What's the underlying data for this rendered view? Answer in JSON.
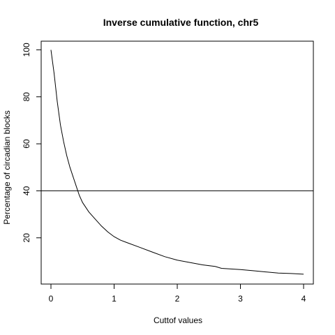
{
  "chart_data": {
    "type": "line",
    "title": "Inverse cumulative function, chr5",
    "xlabel": "Cuttof values",
    "ylabel": "Percentage of circadian blocks",
    "xlim": [
      0,
      4
    ],
    "ylim": [
      3,
      101
    ],
    "x_ticks": [
      0,
      1,
      2,
      3,
      4
    ],
    "y_ticks": [
      20,
      40,
      60,
      80,
      100
    ],
    "grid": false,
    "legend": "none",
    "reference_line": {
      "orientation": "horizontal",
      "y": 40
    },
    "series": [
      {
        "color": "#000000",
        "x": [
          0,
          0.05,
          0.1,
          0.15,
          0.2,
          0.25,
          0.3,
          0.35,
          0.4,
          0.45,
          0.5,
          0.6,
          0.7,
          0.8,
          0.9,
          1.0,
          1.1,
          1.2,
          1.4,
          1.6,
          1.8,
          2.0,
          2.2,
          2.4,
          2.6,
          2.7,
          3.0,
          3.2,
          3.4,
          3.6,
          3.8,
          4.0
        ],
        "y": [
          100,
          90,
          78,
          68,
          61,
          55,
          50,
          46,
          42,
          38,
          35,
          31,
          28,
          25,
          22.5,
          20.5,
          19,
          18,
          16,
          14,
          12,
          10.5,
          9.5,
          8.5,
          7.8,
          7,
          6.5,
          6,
          5.5,
          5,
          4.8,
          4.5
        ]
      }
    ]
  }
}
